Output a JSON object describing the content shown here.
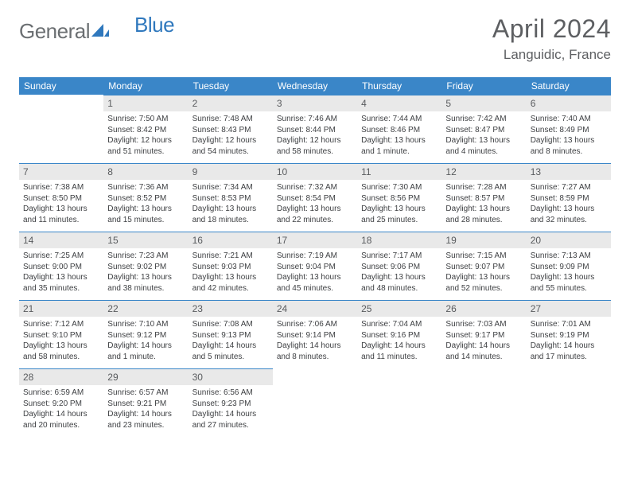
{
  "brand": {
    "text1": "General",
    "text2": "Blue",
    "color1": "#6b6f72",
    "color2": "#2f78bd"
  },
  "title": "April 2024",
  "location": "Languidic, France",
  "header_bg": "#3a86c8",
  "daybar_bg": "#e9e9e9",
  "weekday_labels": [
    "Sunday",
    "Monday",
    "Tuesday",
    "Wednesday",
    "Thursday",
    "Friday",
    "Saturday"
  ],
  "weeks": [
    [
      {
        "n": "",
        "sunrise": "",
        "sunset": "",
        "daylight": ""
      },
      {
        "n": "1",
        "sunrise": "Sunrise: 7:50 AM",
        "sunset": "Sunset: 8:42 PM",
        "daylight": "Daylight: 12 hours and 51 minutes."
      },
      {
        "n": "2",
        "sunrise": "Sunrise: 7:48 AM",
        "sunset": "Sunset: 8:43 PM",
        "daylight": "Daylight: 12 hours and 54 minutes."
      },
      {
        "n": "3",
        "sunrise": "Sunrise: 7:46 AM",
        "sunset": "Sunset: 8:44 PM",
        "daylight": "Daylight: 12 hours and 58 minutes."
      },
      {
        "n": "4",
        "sunrise": "Sunrise: 7:44 AM",
        "sunset": "Sunset: 8:46 PM",
        "daylight": "Daylight: 13 hours and 1 minute."
      },
      {
        "n": "5",
        "sunrise": "Sunrise: 7:42 AM",
        "sunset": "Sunset: 8:47 PM",
        "daylight": "Daylight: 13 hours and 4 minutes."
      },
      {
        "n": "6",
        "sunrise": "Sunrise: 7:40 AM",
        "sunset": "Sunset: 8:49 PM",
        "daylight": "Daylight: 13 hours and 8 minutes."
      }
    ],
    [
      {
        "n": "7",
        "sunrise": "Sunrise: 7:38 AM",
        "sunset": "Sunset: 8:50 PM",
        "daylight": "Daylight: 13 hours and 11 minutes."
      },
      {
        "n": "8",
        "sunrise": "Sunrise: 7:36 AM",
        "sunset": "Sunset: 8:52 PM",
        "daylight": "Daylight: 13 hours and 15 minutes."
      },
      {
        "n": "9",
        "sunrise": "Sunrise: 7:34 AM",
        "sunset": "Sunset: 8:53 PM",
        "daylight": "Daylight: 13 hours and 18 minutes."
      },
      {
        "n": "10",
        "sunrise": "Sunrise: 7:32 AM",
        "sunset": "Sunset: 8:54 PM",
        "daylight": "Daylight: 13 hours and 22 minutes."
      },
      {
        "n": "11",
        "sunrise": "Sunrise: 7:30 AM",
        "sunset": "Sunset: 8:56 PM",
        "daylight": "Daylight: 13 hours and 25 minutes."
      },
      {
        "n": "12",
        "sunrise": "Sunrise: 7:28 AM",
        "sunset": "Sunset: 8:57 PM",
        "daylight": "Daylight: 13 hours and 28 minutes."
      },
      {
        "n": "13",
        "sunrise": "Sunrise: 7:27 AM",
        "sunset": "Sunset: 8:59 PM",
        "daylight": "Daylight: 13 hours and 32 minutes."
      }
    ],
    [
      {
        "n": "14",
        "sunrise": "Sunrise: 7:25 AM",
        "sunset": "Sunset: 9:00 PM",
        "daylight": "Daylight: 13 hours and 35 minutes."
      },
      {
        "n": "15",
        "sunrise": "Sunrise: 7:23 AM",
        "sunset": "Sunset: 9:02 PM",
        "daylight": "Daylight: 13 hours and 38 minutes."
      },
      {
        "n": "16",
        "sunrise": "Sunrise: 7:21 AM",
        "sunset": "Sunset: 9:03 PM",
        "daylight": "Daylight: 13 hours and 42 minutes."
      },
      {
        "n": "17",
        "sunrise": "Sunrise: 7:19 AM",
        "sunset": "Sunset: 9:04 PM",
        "daylight": "Daylight: 13 hours and 45 minutes."
      },
      {
        "n": "18",
        "sunrise": "Sunrise: 7:17 AM",
        "sunset": "Sunset: 9:06 PM",
        "daylight": "Daylight: 13 hours and 48 minutes."
      },
      {
        "n": "19",
        "sunrise": "Sunrise: 7:15 AM",
        "sunset": "Sunset: 9:07 PM",
        "daylight": "Daylight: 13 hours and 52 minutes."
      },
      {
        "n": "20",
        "sunrise": "Sunrise: 7:13 AM",
        "sunset": "Sunset: 9:09 PM",
        "daylight": "Daylight: 13 hours and 55 minutes."
      }
    ],
    [
      {
        "n": "21",
        "sunrise": "Sunrise: 7:12 AM",
        "sunset": "Sunset: 9:10 PM",
        "daylight": "Daylight: 13 hours and 58 minutes."
      },
      {
        "n": "22",
        "sunrise": "Sunrise: 7:10 AM",
        "sunset": "Sunset: 9:12 PM",
        "daylight": "Daylight: 14 hours and 1 minute."
      },
      {
        "n": "23",
        "sunrise": "Sunrise: 7:08 AM",
        "sunset": "Sunset: 9:13 PM",
        "daylight": "Daylight: 14 hours and 5 minutes."
      },
      {
        "n": "24",
        "sunrise": "Sunrise: 7:06 AM",
        "sunset": "Sunset: 9:14 PM",
        "daylight": "Daylight: 14 hours and 8 minutes."
      },
      {
        "n": "25",
        "sunrise": "Sunrise: 7:04 AM",
        "sunset": "Sunset: 9:16 PM",
        "daylight": "Daylight: 14 hours and 11 minutes."
      },
      {
        "n": "26",
        "sunrise": "Sunrise: 7:03 AM",
        "sunset": "Sunset: 9:17 PM",
        "daylight": "Daylight: 14 hours and 14 minutes."
      },
      {
        "n": "27",
        "sunrise": "Sunrise: 7:01 AM",
        "sunset": "Sunset: 9:19 PM",
        "daylight": "Daylight: 14 hours and 17 minutes."
      }
    ],
    [
      {
        "n": "28",
        "sunrise": "Sunrise: 6:59 AM",
        "sunset": "Sunset: 9:20 PM",
        "daylight": "Daylight: 14 hours and 20 minutes."
      },
      {
        "n": "29",
        "sunrise": "Sunrise: 6:57 AM",
        "sunset": "Sunset: 9:21 PM",
        "daylight": "Daylight: 14 hours and 23 minutes."
      },
      {
        "n": "30",
        "sunrise": "Sunrise: 6:56 AM",
        "sunset": "Sunset: 9:23 PM",
        "daylight": "Daylight: 14 hours and 27 minutes."
      },
      {
        "n": "",
        "sunrise": "",
        "sunset": "",
        "daylight": ""
      },
      {
        "n": "",
        "sunrise": "",
        "sunset": "",
        "daylight": ""
      },
      {
        "n": "",
        "sunrise": "",
        "sunset": "",
        "daylight": ""
      },
      {
        "n": "",
        "sunrise": "",
        "sunset": "",
        "daylight": ""
      }
    ]
  ]
}
